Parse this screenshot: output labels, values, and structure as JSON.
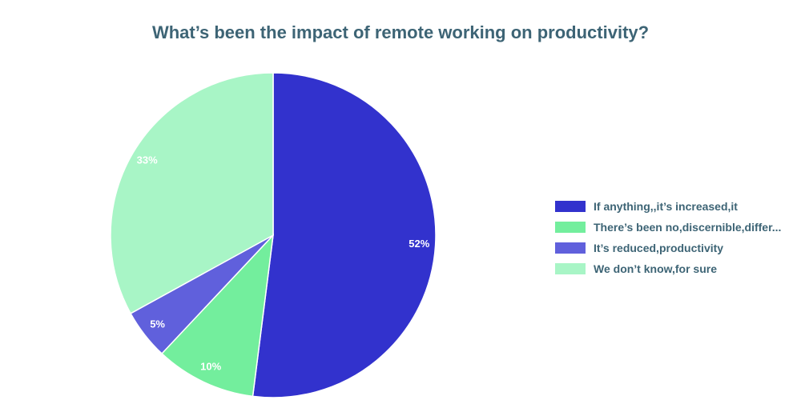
{
  "chart_data": {
    "type": "pie",
    "title": "What’s been the impact of remote working on productivity?",
    "slices": [
      {
        "label": "If anything,,it’s increased,it",
        "value": 52,
        "display": "52%",
        "color": "#3232cd"
      },
      {
        "label": "There’s been no,discernible,differ...",
        "value": 10,
        "display": "10%",
        "color": "#73ee9d"
      },
      {
        "label": "It’s reduced,productivity",
        "value": 5,
        "display": "5%",
        "color": "#6060dc"
      },
      {
        "label": "We don’t know,for sure",
        "value": 33,
        "display": "33%",
        "color": "#a8f5c6"
      }
    ],
    "legend_position": "right"
  }
}
